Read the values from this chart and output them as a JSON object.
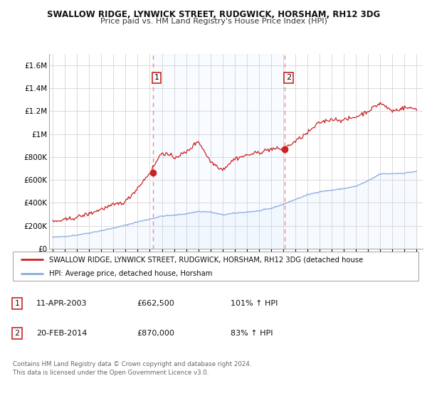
{
  "title1": "SWALLOW RIDGE, LYNWICK STREET, RUDGWICK, HORSHAM, RH12 3DG",
  "title2": "Price paid vs. HM Land Registry's House Price Index (HPI)",
  "bg_color": "#ffffff",
  "plot_bg_color": "#ffffff",
  "grid_color": "#cccccc",
  "hpi_line_color": "#88aadd",
  "price_line_color": "#cc2222",
  "hpi_fill_color": "#ddeeff",
  "marker_color": "#cc2222",
  "dashed_line_color": "#ee8888",
  "highlight_fill": "#ddeeff",
  "sale1_x": 2003.27,
  "sale1_y": 662500,
  "sale2_x": 2014.13,
  "sale2_y": 870000,
  "sale1_label": "1",
  "sale2_label": "2",
  "legend_entry1": "SWALLOW RIDGE, LYNWICK STREET, RUDGWICK, HORSHAM, RH12 3DG (detached house",
  "legend_entry2": "HPI: Average price, detached house, Horsham",
  "table_row1_num": "1",
  "table_row1_date": "11-APR-2003",
  "table_row1_price": "£662,500",
  "table_row1_hpi": "101% ↑ HPI",
  "table_row2_num": "2",
  "table_row2_date": "20-FEB-2014",
  "table_row2_price": "£870,000",
  "table_row2_hpi": "83% ↑ HPI",
  "footer": "Contains HM Land Registry data © Crown copyright and database right 2024.\nThis data is licensed under the Open Government Licence v3.0.",
  "ylim": [
    0,
    1700000
  ],
  "xlim_start": 1994.7,
  "xlim_end": 2025.5,
  "yticks": [
    0,
    200000,
    400000,
    600000,
    800000,
    1000000,
    1200000,
    1400000,
    1600000
  ],
  "ytick_labels": [
    "£0",
    "£200K",
    "£400K",
    "£600K",
    "£800K",
    "£1M",
    "£1.2M",
    "£1.4M",
    "£1.6M"
  ],
  "xticks": [
    1995,
    1996,
    1997,
    1998,
    1999,
    2000,
    2001,
    2002,
    2003,
    2004,
    2005,
    2006,
    2007,
    2008,
    2009,
    2010,
    2011,
    2012,
    2013,
    2014,
    2015,
    2016,
    2017,
    2018,
    2019,
    2020,
    2021,
    2022,
    2023,
    2024,
    2025
  ],
  "hpi_keypoints_x": [
    1995,
    1996,
    1997,
    1998,
    1999,
    2000,
    2001,
    2002,
    2003,
    2004,
    2005,
    2006,
    2007,
    2008,
    2009,
    2010,
    2011,
    2012,
    2013,
    2014,
    2015,
    2016,
    2017,
    2018,
    2019,
    2020,
    2021,
    2022,
    2023,
    2024,
    2025
  ],
  "hpi_keypoints_y": [
    100000,
    108000,
    120000,
    138000,
    158000,
    180000,
    205000,
    235000,
    258000,
    285000,
    292000,
    305000,
    325000,
    320000,
    295000,
    310000,
    320000,
    330000,
    352000,
    388000,
    430000,
    470000,
    498000,
    510000,
    525000,
    545000,
    592000,
    652000,
    655000,
    660000,
    675000
  ],
  "price_keypoints_x": [
    1995,
    1996,
    1997,
    1998,
    1999,
    2000,
    2001,
    2002,
    2003,
    2004,
    2005,
    2006,
    2007,
    2008,
    2009,
    2010,
    2011,
    2012,
    2013,
    2014,
    2015,
    2016,
    2017,
    2018,
    2019,
    2020,
    2021,
    2022,
    2023,
    2024,
    2025
  ],
  "price_keypoints_y": [
    235000,
    250000,
    275000,
    305000,
    345000,
    380000,
    410000,
    530000,
    662500,
    840000,
    795000,
    840000,
    940000,
    760000,
    690000,
    785000,
    815000,
    840000,
    870000,
    870000,
    935000,
    1010000,
    1100000,
    1130000,
    1120000,
    1150000,
    1200000,
    1270000,
    1200000,
    1230000,
    1220000
  ]
}
